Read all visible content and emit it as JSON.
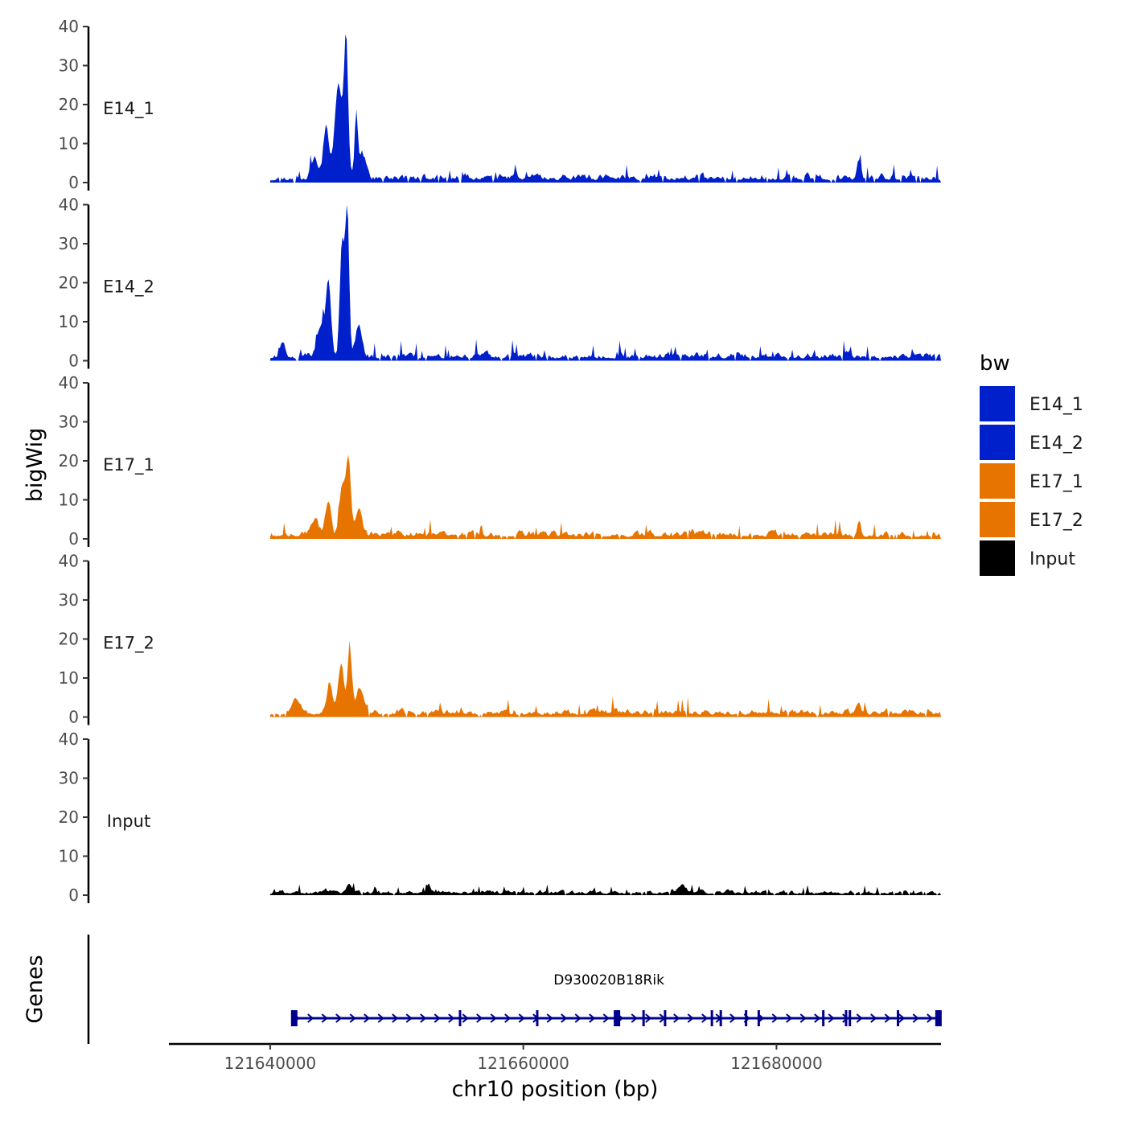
{
  "chart_data": {
    "type": "area",
    "description_free": true,
    "xlabel": "chr10 position (bp)",
    "ylabel": "bigWig",
    "genes_label": "Genes",
    "xlim": [
      121632000,
      121693000
    ],
    "x_ticks": [
      121640000,
      121660000,
      121680000
    ],
    "x_tick_labels": [
      "121640000",
      "121660000",
      "121680000"
    ],
    "ylim": [
      0,
      40
    ],
    "y_ticks": [
      0,
      10,
      20,
      30,
      40
    ],
    "y_tick_labels": [
      "0",
      "10",
      "20",
      "30",
      "40"
    ],
    "data_range": [
      121640000,
      121693000
    ],
    "tracks": [
      {
        "name": "E14_1",
        "color": "#0020CC",
        "peaks": [
          [
            121646000,
            34,
            160
          ],
          [
            121645400,
            24,
            300
          ],
          [
            121644400,
            14,
            200
          ],
          [
            121646800,
            17,
            120
          ],
          [
            121647300,
            7,
            260
          ],
          [
            121643500,
            5,
            250
          ],
          [
            121686500,
            5,
            150
          ]
        ],
        "noise": 1.8,
        "seed": 11
      },
      {
        "name": "E14_2",
        "color": "#0020CC",
        "peaks": [
          [
            121646100,
            38,
            140
          ],
          [
            121645700,
            30,
            190
          ],
          [
            121644600,
            18,
            200
          ],
          [
            121647000,
            8,
            250
          ],
          [
            121644000,
            8,
            300
          ],
          [
            121641000,
            4,
            200
          ]
        ],
        "noise": 1.7,
        "seed": 23
      },
      {
        "name": "E17_1",
        "color": "#E87400",
        "peaks": [
          [
            121646200,
            19,
            170
          ],
          [
            121645700,
            14,
            240
          ],
          [
            121644600,
            9,
            220
          ],
          [
            121647000,
            7,
            250
          ],
          [
            121643500,
            4,
            300
          ],
          [
            121686500,
            3,
            150
          ]
        ],
        "noise": 1.6,
        "seed": 37
      },
      {
        "name": "E17_2",
        "color": "#E87400",
        "peaks": [
          [
            121646300,
            16,
            170
          ],
          [
            121645600,
            12,
            240
          ],
          [
            121644700,
            8,
            220
          ],
          [
            121647100,
            6,
            260
          ],
          [
            121642000,
            4,
            300
          ],
          [
            121686500,
            3,
            150
          ]
        ],
        "noise": 1.6,
        "seed": 53
      },
      {
        "name": "Input",
        "color": "#000000",
        "peaks": [
          [
            121646300,
            2,
            200
          ],
          [
            121652500,
            2,
            150
          ],
          [
            121672500,
            2,
            300
          ]
        ],
        "noise": 1.0,
        "seed": 71
      }
    ],
    "legend": {
      "title": "bw",
      "position": "right",
      "entries": [
        {
          "label": "E14_1",
          "color": "#0020CC"
        },
        {
          "label": "E14_2",
          "color": "#0020CC"
        },
        {
          "label": "E17_1",
          "color": "#E87400"
        },
        {
          "label": "E17_2",
          "color": "#E87400"
        },
        {
          "label": "Input",
          "color": "#000000"
        }
      ]
    },
    "gene": {
      "name": "D930020B18Rik",
      "start": 121641800,
      "end": 121693000,
      "color": "#00008B",
      "strand": "+",
      "exons": [
        121641900,
        121655000,
        121661100,
        121667400,
        121669500,
        121671200,
        121674900,
        121675600,
        121677600,
        121678600,
        121683700,
        121685500,
        121685800,
        121689600,
        121692800
      ]
    }
  }
}
